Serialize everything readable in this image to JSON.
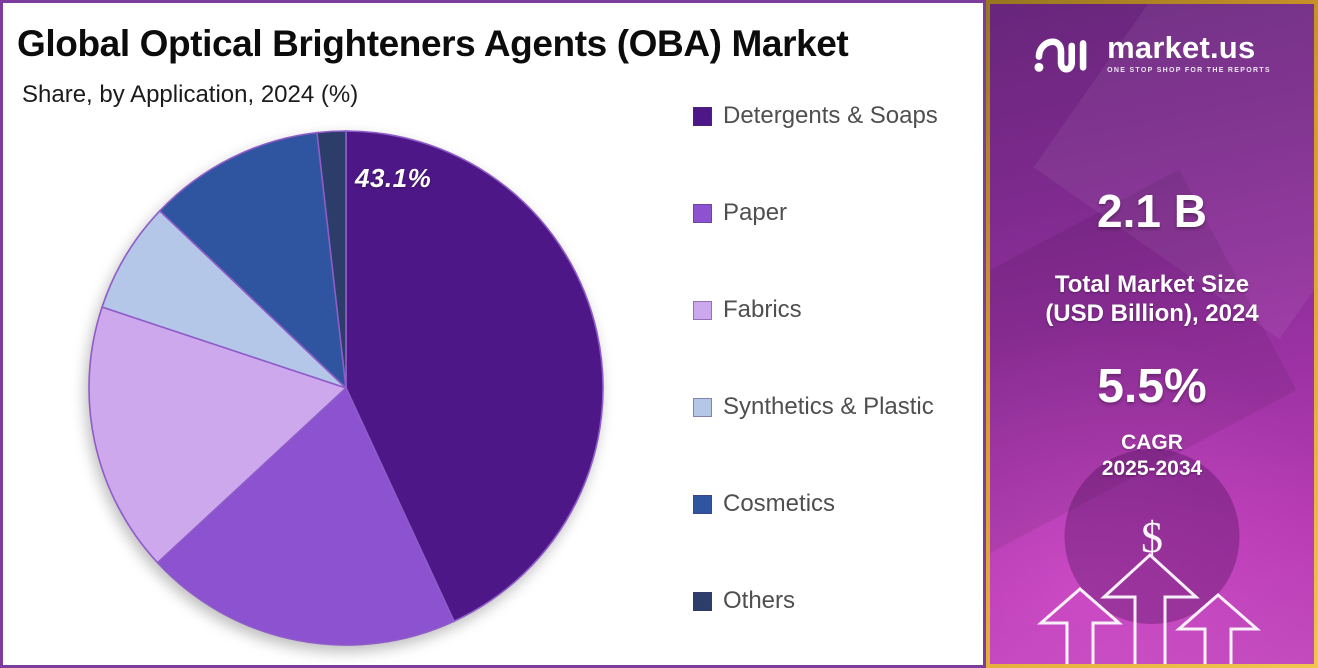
{
  "header": {
    "title": "Global Optical Brighteners Agents (OBA) Market",
    "subtitle": "Share, by Application, 2024 (%)"
  },
  "chart_data": {
    "type": "pie",
    "title": "Global Optical Brighteners Agents (OBA) Market Share, by Application, 2024 (%)",
    "unit": "%",
    "start_angle_deg": 0,
    "direction": "clockwise",
    "legend_position": "right",
    "slices": [
      {
        "label": "Detergents & Soaps",
        "value": 43.1,
        "color": "#4E1787"
      },
      {
        "label": "Paper",
        "value": 20.0,
        "color": "#8C52CF"
      },
      {
        "label": "Fabrics",
        "value": 17.0,
        "color": "#CDA8EC"
      },
      {
        "label": "Synthetics & Plastic",
        "value": 7.0,
        "color": "#B5C7E8"
      },
      {
        "label": "Cosmetics",
        "value": 11.1,
        "color": "#2F55A0"
      },
      {
        "label": "Others",
        "value": 1.8,
        "color": "#2B3D68"
      }
    ],
    "data_label": {
      "slice": "Detergents & Soaps",
      "text": "43.1%"
    }
  },
  "sidebar": {
    "brand": "market.us",
    "tagline": "ONE STOP SHOP FOR THE REPORTS",
    "stats": {
      "market_size_value": "2.1 B",
      "market_size_label_line1": "Total Market Size",
      "market_size_label_line2": "(USD Billion), 2024",
      "cagr_value": "5.5%",
      "cagr_label_line1": "CAGR",
      "cagr_label_line2": "2025-2034"
    },
    "dollar_symbol": "$"
  },
  "colors": {
    "panel_border": "#7C3C9E",
    "sidebar_border": "#D9992B",
    "sidebar_bg_top": "#68267C",
    "sidebar_bg_bottom": "#C04ABB",
    "slice_stroke": "#8E5BC8",
    "legend_text": "#4F4F4F",
    "title_text": "#0C0C0C",
    "stat_text": "#FFFFFF"
  }
}
